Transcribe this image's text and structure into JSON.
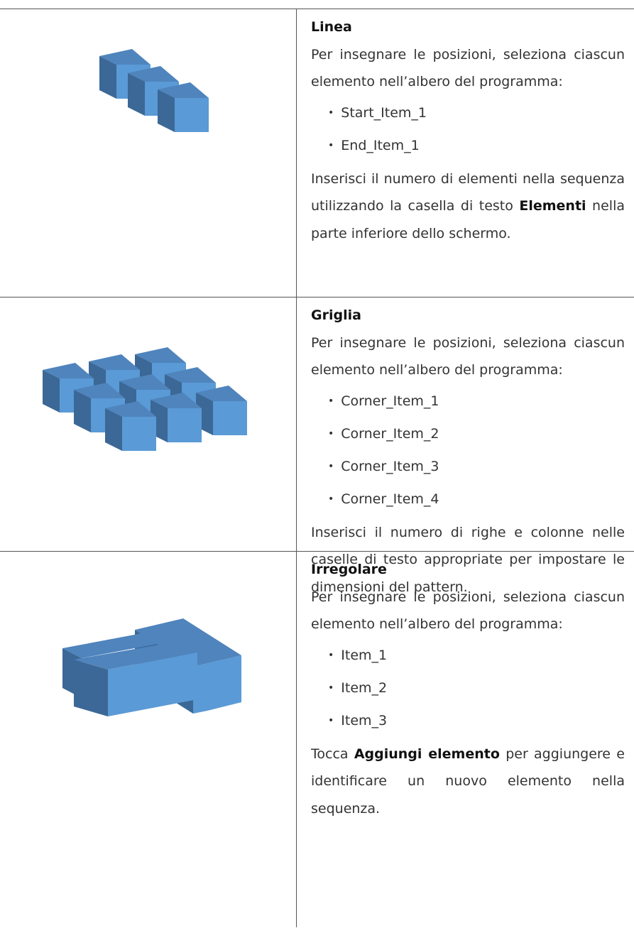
{
  "table": {
    "rows": [
      {
        "title": "Linea",
        "intro": "Per insegnare le posizioni, seleziona ciascun elemento nell’albero del programma:",
        "items": [
          "Start_Item_1",
          "End_Item_1"
        ],
        "outro": [
          {
            "text": "Inserisci il numero di elementi nella sequenza utilizzando la casella di testo ",
            "bold": false
          },
          {
            "text": "Elementi",
            "bold": true
          },
          {
            "text": " nella parte inferiore dello schermo.",
            "bold": false
          }
        ]
      },
      {
        "title": "Griglia",
        "intro": "Per insegnare le posizioni, seleziona ciascun elemento nell’albero del programma:",
        "items": [
          "Corner_Item_1",
          "Corner_Item_2",
          "Corner_Item_3",
          "Corner_Item_4"
        ],
        "outro": [
          {
            "text": "Inserisci il numero di righe e colonne nelle caselle di testo appropriate per impostare le dimensioni del pattern.",
            "bold": false
          }
        ]
      },
      {
        "title": "Irregolare",
        "intro": "Per insegnare le posizioni, seleziona ciascun elemento nell’albero del programma:",
        "items": [
          "Item_1",
          "Item_2",
          "Item_3"
        ],
        "outro": [
          {
            "text": "Tocca ",
            "bold": false
          },
          {
            "text": "Aggiungi elemento",
            "bold": true
          },
          {
            "text": " per aggiungere e identificare un nuovo elemento nella sequenza.",
            "bold": false
          }
        ]
      }
    ]
  }
}
